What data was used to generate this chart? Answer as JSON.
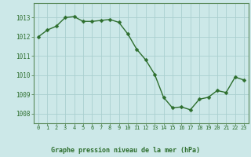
{
  "x": [
    0,
    1,
    2,
    3,
    4,
    5,
    6,
    7,
    8,
    9,
    10,
    11,
    12,
    13,
    14,
    15,
    16,
    17,
    18,
    19,
    20,
    21,
    22,
    23
  ],
  "y": [
    1012.0,
    1012.35,
    1012.55,
    1013.0,
    1013.05,
    1012.8,
    1012.8,
    1012.85,
    1012.9,
    1012.75,
    1012.15,
    1011.35,
    1010.8,
    1010.05,
    1008.85,
    1008.3,
    1008.35,
    1008.2,
    1008.75,
    1008.85,
    1009.2,
    1009.1,
    1009.9,
    1009.75
  ],
  "line_color": "#2d6e2d",
  "marker_color": "#2d6e2d",
  "bg_color": "#cce8e8",
  "grid_color": "#aacfcf",
  "title": "Graphe pression niveau de la mer (hPa)",
  "ylim_min": 1007.5,
  "ylim_max": 1013.75,
  "yticks": [
    1008,
    1009,
    1010,
    1011,
    1012,
    1013
  ],
  "xticks": [
    0,
    1,
    2,
    3,
    4,
    5,
    6,
    7,
    8,
    9,
    10,
    11,
    12,
    13,
    14,
    15,
    16,
    17,
    18,
    19,
    20,
    21,
    22,
    23
  ],
  "tick_label_color": "#2d6e2d",
  "title_color": "#2d6e2d",
  "axis_color": "#5a8a5a",
  "marker_size": 2.5,
  "line_width": 1.0
}
